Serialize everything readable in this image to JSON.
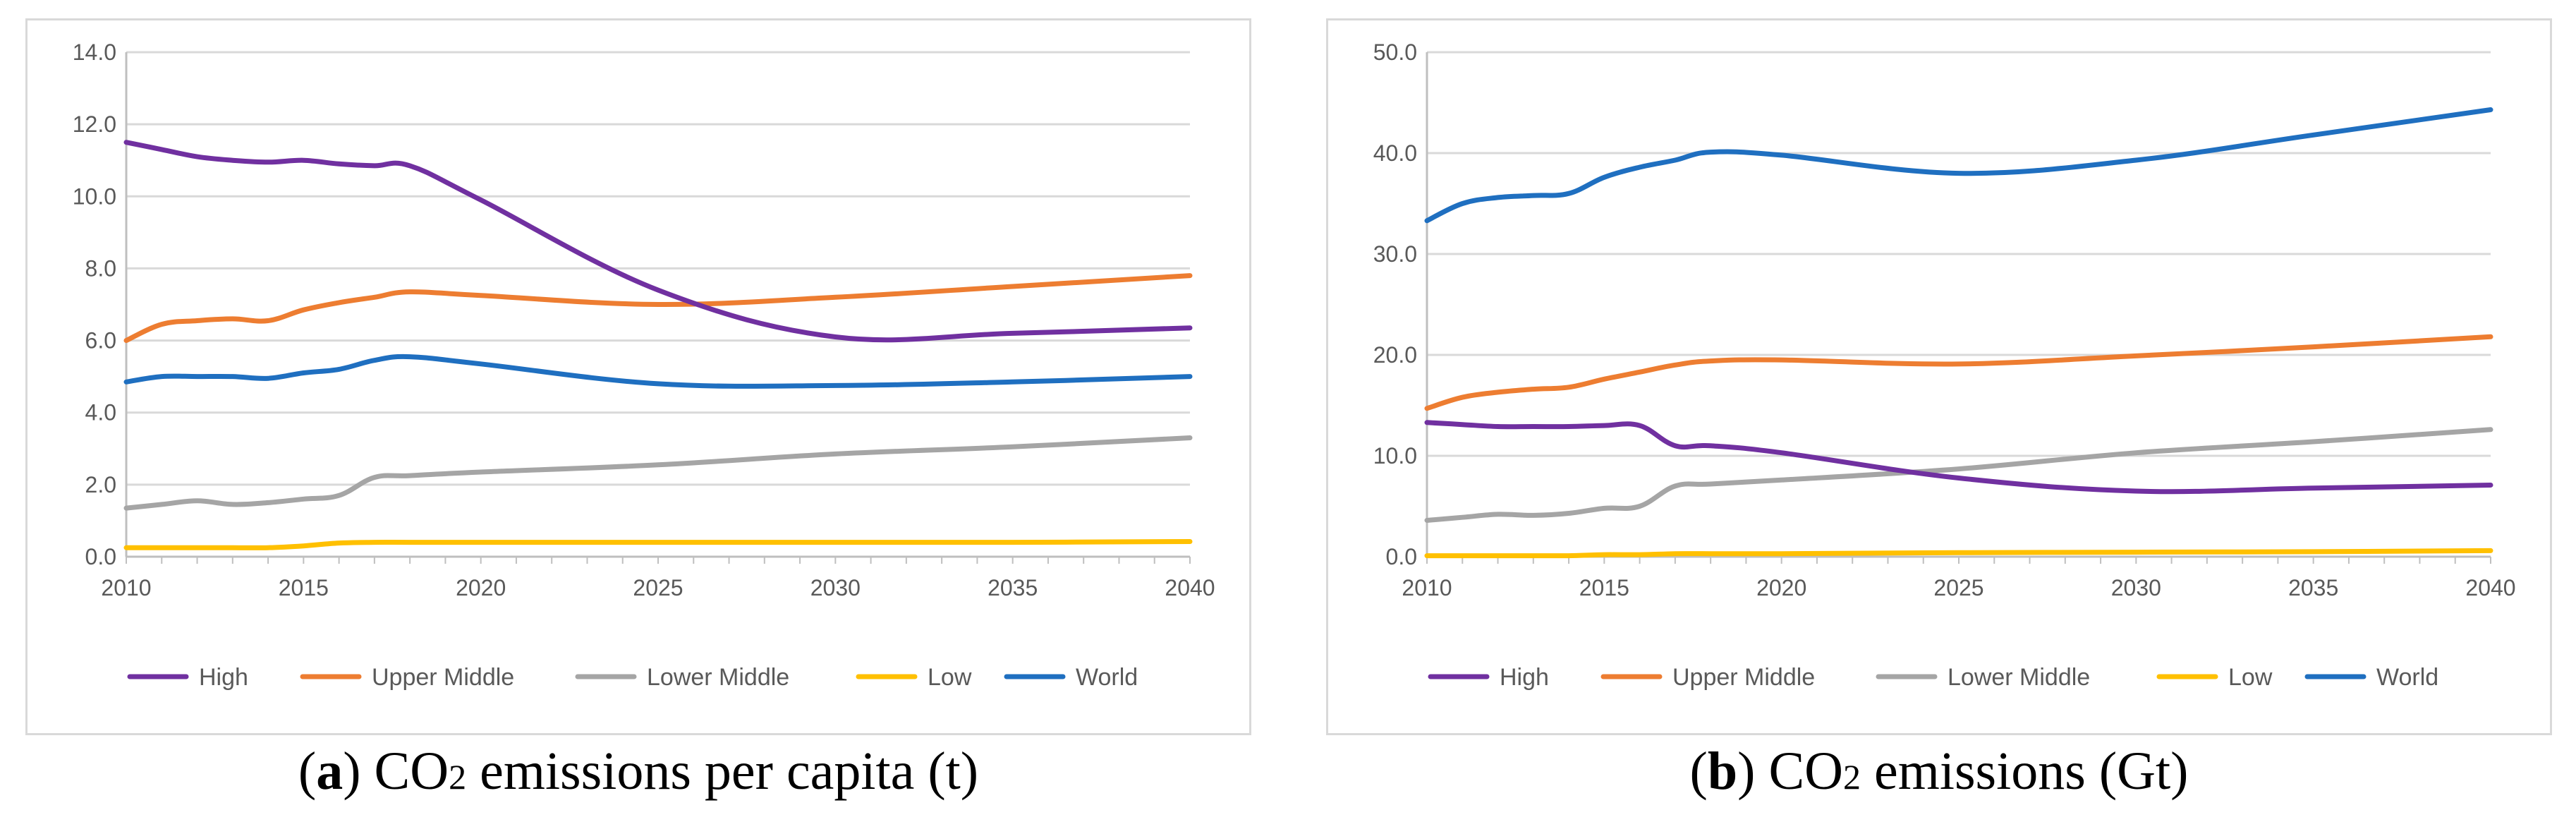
{
  "figure": {
    "panel_a": {
      "caption_letter": "a",
      "caption_pre": "CO",
      "caption_sub": "2",
      "caption_post": " emissions per capita (t)"
    },
    "panel_b": {
      "caption_letter": "b",
      "caption_pre": "CO",
      "caption_sub": "2",
      "caption_post": " emissions (Gt)"
    }
  },
  "colors": {
    "High": "#7030a0",
    "Upper Middle": "#ed7d31",
    "Lower Middle": "#a5a5a5",
    "Low": "#ffc000",
    "World": "#1f6fc0",
    "grid": "#d9d9d9",
    "axis": "#bfbfbf"
  },
  "chart_data": [
    {
      "type": "line",
      "title": "CO2 emissions per capita (t)",
      "xlabel": "",
      "ylabel": "",
      "xlim": [
        2010,
        2040
      ],
      "ylim": [
        0,
        14
      ],
      "yticks": [
        "0.0",
        "2.0",
        "4.0",
        "6.0",
        "8.0",
        "10.0",
        "12.0",
        "14.0"
      ],
      "xticks": [
        "2010",
        "2015",
        "2020",
        "2025",
        "2030",
        "2035",
        "2040"
      ],
      "grid": true,
      "legend": "bottom",
      "x": [
        2010,
        2011,
        2012,
        2013,
        2014,
        2015,
        2016,
        2017,
        2018,
        2020,
        2025,
        2030,
        2035,
        2040
      ],
      "series": [
        {
          "name": "High",
          "values": [
            11.5,
            11.3,
            11.1,
            11.0,
            10.95,
            11.0,
            10.9,
            10.85,
            10.85,
            9.9,
            7.4,
            6.1,
            6.2,
            6.35
          ]
        },
        {
          "name": "Upper Middle",
          "values": [
            6.0,
            6.45,
            6.55,
            6.6,
            6.55,
            6.85,
            7.05,
            7.2,
            7.35,
            7.25,
            7.0,
            7.2,
            7.5,
            7.8
          ]
        },
        {
          "name": "Lower Middle",
          "values": [
            1.35,
            1.45,
            1.55,
            1.45,
            1.5,
            1.6,
            1.7,
            2.2,
            2.25,
            2.35,
            2.55,
            2.85,
            3.05,
            3.3
          ]
        },
        {
          "name": "Low",
          "values": [
            0.25,
            0.25,
            0.25,
            0.25,
            0.25,
            0.3,
            0.38,
            0.4,
            0.4,
            0.4,
            0.4,
            0.4,
            0.4,
            0.42
          ]
        },
        {
          "name": "World",
          "values": [
            4.85,
            5.0,
            5.0,
            5.0,
            4.95,
            5.1,
            5.2,
            5.45,
            5.55,
            5.35,
            4.8,
            4.75,
            4.85,
            5.0
          ]
        }
      ]
    },
    {
      "type": "line",
      "title": "CO2 emissions (Gt)",
      "xlabel": "",
      "ylabel": "",
      "xlim": [
        2010,
        2040
      ],
      "ylim": [
        0,
        50
      ],
      "yticks": [
        "0.0",
        "10.0",
        "20.0",
        "30.0",
        "40.0",
        "50.0"
      ],
      "xticks": [
        "2010",
        "2015",
        "2020",
        "2025",
        "2030",
        "2035",
        "2040"
      ],
      "grid": true,
      "legend": "bottom",
      "x": [
        2010,
        2011,
        2012,
        2013,
        2014,
        2015,
        2016,
        2017,
        2018,
        2020,
        2025,
        2030,
        2035,
        2040
      ],
      "series": [
        {
          "name": "High",
          "values": [
            13.3,
            13.1,
            12.9,
            12.9,
            12.9,
            13.0,
            13.0,
            11.0,
            11.0,
            10.3,
            7.8,
            6.5,
            6.8,
            7.1
          ]
        },
        {
          "name": "Upper Middle",
          "values": [
            14.7,
            15.8,
            16.3,
            16.6,
            16.8,
            17.6,
            18.3,
            19.0,
            19.4,
            19.5,
            19.1,
            19.9,
            20.8,
            21.8
          ]
        },
        {
          "name": "Lower Middle",
          "values": [
            3.6,
            3.9,
            4.2,
            4.1,
            4.3,
            4.8,
            5.0,
            7.0,
            7.2,
            7.6,
            8.7,
            10.3,
            11.4,
            12.6
          ]
        },
        {
          "name": "Low",
          "values": [
            0.1,
            0.1,
            0.1,
            0.1,
            0.1,
            0.2,
            0.2,
            0.3,
            0.3,
            0.3,
            0.4,
            0.45,
            0.5,
            0.6
          ]
        },
        {
          "name": "World",
          "values": [
            33.3,
            35.0,
            35.6,
            35.8,
            36.0,
            37.6,
            38.6,
            39.3,
            40.1,
            39.8,
            38.0,
            39.3,
            41.8,
            44.3
          ]
        }
      ]
    }
  ]
}
